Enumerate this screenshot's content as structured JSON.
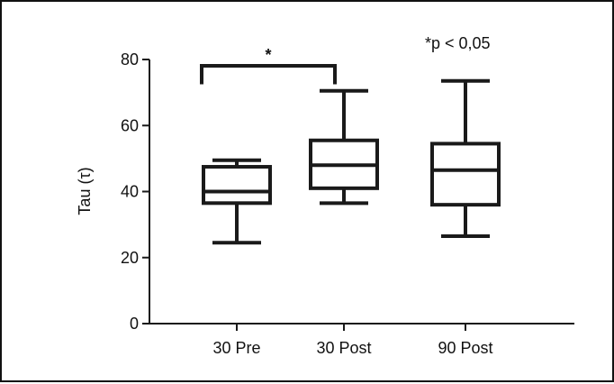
{
  "chart_data": {
    "type": "box",
    "title": "",
    "xlabel": "",
    "ylabel": "Tau (τ)",
    "ylim": [
      0,
      80
    ],
    "yticks": [
      0,
      20,
      40,
      60,
      80
    ],
    "grid": false,
    "categories": [
      "30 Pre",
      "30 Post",
      "90 Post"
    ],
    "boxes": [
      {
        "category": "30 Pre",
        "min": 24.5,
        "q1": 36.5,
        "median": 40.0,
        "q3": 47.5,
        "max": 49.5
      },
      {
        "category": "30 Post",
        "min": 36.5,
        "q1": 41.0,
        "median": 48.0,
        "q3": 55.5,
        "max": 70.5
      },
      {
        "category": "90 Post",
        "min": 26.5,
        "q1": 36.0,
        "median": 46.5,
        "q3": 54.5,
        "max": 73.5
      }
    ],
    "significance": {
      "from": "30 Pre",
      "to": "30 Post",
      "y": 80,
      "drop_to": 72.5,
      "label": "*"
    },
    "annotation": "*p < 0,05"
  }
}
